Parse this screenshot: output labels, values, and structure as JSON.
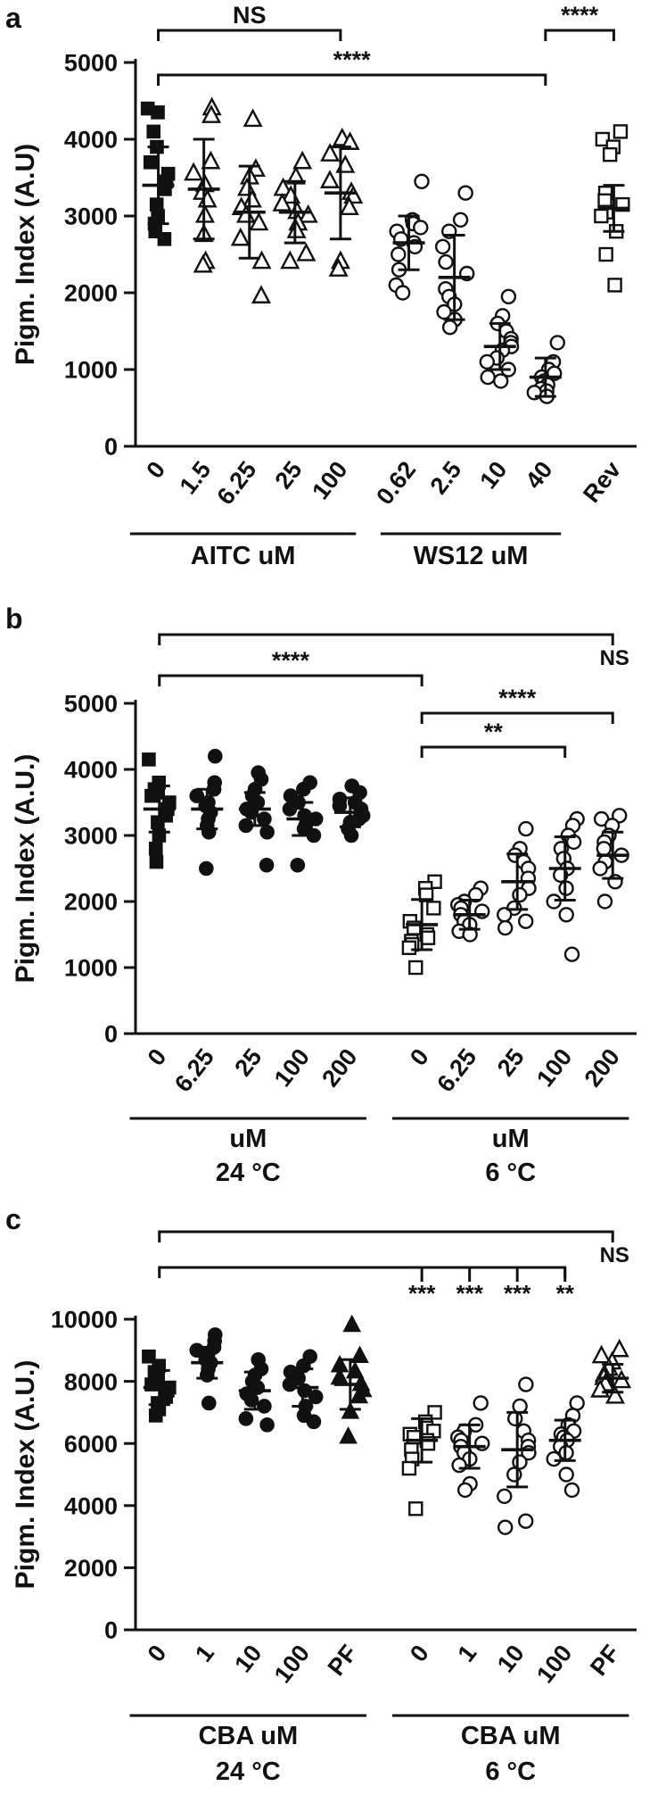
{
  "chart_data": [
    {
      "type": "scatter",
      "panel_label": "a",
      "ylabel": "Pigm. Index (A.U)",
      "ylim": [
        0,
        5000
      ],
      "yticks": [
        0,
        1000,
        2000,
        3000,
        4000,
        5000
      ],
      "groups": [
        {
          "label": "AITC uM",
          "sublabel": "",
          "categories": [
            {
              "tick": "0",
              "marker": "filled-square",
              "mean": 3400,
              "sd": 500,
              "points": [
                4400,
                4350,
                4100,
                3900,
                3700,
                3550,
                3450,
                3350,
                3150,
                3000,
                2900,
                2800,
                2700
              ]
            },
            {
              "tick": "1.5",
              "marker": "open-triangle",
              "mean": 3350,
              "sd": 650,
              "points": [
                4400,
                4300,
                3700,
                3550,
                3400,
                3300,
                3200,
                3000,
                2750,
                2400,
                2350
              ]
            },
            {
              "tick": "6.25",
              "marker": "open-triangle",
              "mean": 3050,
              "sd": 600,
              "points": [
                4250,
                3600,
                3500,
                3350,
                3200,
                3100,
                3000,
                2900,
                2700,
                2400,
                1950
              ]
            },
            {
              "tick": "25",
              "marker": "open-triangle",
              "mean": 3050,
              "sd": 400,
              "points": [
                3700,
                3500,
                3350,
                3250,
                3150,
                3050,
                3000,
                2900,
                2800,
                2500,
                2400
              ]
            },
            {
              "tick": "100",
              "marker": "open-triangle",
              "mean": 3300,
              "sd": 600,
              "points": [
                4000,
                3950,
                3800,
                3650,
                3450,
                3300,
                3250,
                3100,
                2400,
                2300
              ]
            }
          ]
        },
        {
          "label": "WS12 uM",
          "sublabel": "",
          "categories": [
            {
              "tick": "0.62",
              "marker": "open-circle",
              "mean": 2650,
              "sd": 350,
              "points": [
                3450,
                2950,
                2900,
                2850,
                2800,
                2700,
                2650,
                2600,
                2500,
                2300,
                2100,
                2000
              ]
            },
            {
              "tick": "2.5",
              "marker": "open-circle",
              "mean": 2200,
              "sd": 550,
              "points": [
                3300,
                2950,
                2800,
                2600,
                2400,
                2250,
                2050,
                1950,
                1850,
                1750,
                1650,
                1550
              ]
            },
            {
              "tick": "10",
              "marker": "open-circle",
              "mean": 1300,
              "sd": 300,
              "points": [
                1950,
                1700,
                1600,
                1500,
                1400,
                1350,
                1300,
                1250,
                1150,
                1100,
                1000,
                900,
                850
              ]
            },
            {
              "tick": "40",
              "marker": "open-circle",
              "mean": 900,
              "sd": 250,
              "points": [
                1350,
                1100,
                1000,
                950,
                900,
                850,
                800,
                750,
                720,
                700,
                650
              ]
            }
          ]
        },
        {
          "label": "",
          "sublabel": "",
          "categories": [
            {
              "tick": "Rev",
              "marker": "open-square",
              "mean": 3100,
              "sd": 300,
              "points": [
                4100,
                4000,
                3900,
                3800,
                3300,
                3200,
                3150,
                3050,
                3000,
                2800,
                2500,
                2100
              ]
            }
          ]
        }
      ],
      "brackets": [
        {
          "from": 0,
          "to": 4,
          "level": 1,
          "label": "NS",
          "label_pos": "center"
        },
        {
          "from": 0,
          "to": 8,
          "level": 2,
          "label": "****",
          "label_pos": "center"
        },
        {
          "from": 8,
          "to": 9,
          "level": 1,
          "label": "****",
          "label_pos": "center"
        }
      ],
      "col_stars": []
    },
    {
      "type": "scatter",
      "panel_label": "b",
      "ylabel": "Pigm. Index (A.U.)",
      "ylim": [
        0,
        5000
      ],
      "yticks": [
        0,
        1000,
        2000,
        3000,
        4000,
        5000
      ],
      "groups": [
        {
          "label": "uM",
          "sublabel": "24 °C",
          "categories": [
            {
              "tick": "0",
              "marker": "filled-square",
              "mean": 3400,
              "sd": 350,
              "points": [
                4150,
                3800,
                3700,
                3650,
                3600,
                3500,
                3400,
                3300,
                3200,
                3000,
                2800,
                2600
              ]
            },
            {
              "tick": "6.25",
              "marker": "filled-circle",
              "mean": 3400,
              "sd": 300,
              "points": [
                4200,
                3800,
                3700,
                3600,
                3500,
                3450,
                3350,
                3250,
                3150,
                3050,
                2500
              ]
            },
            {
              "tick": "25",
              "marker": "filled-circle",
              "mean": 3400,
              "sd": 250,
              "points": [
                3950,
                3850,
                3700,
                3600,
                3500,
                3400,
                3350,
                3250,
                3150,
                3050,
                2550
              ]
            },
            {
              "tick": "100",
              "marker": "filled-circle",
              "mean": 3250,
              "sd": 250,
              "points": [
                3800,
                3700,
                3600,
                3500,
                3400,
                3300,
                3250,
                3150,
                3100,
                3000,
                2550
              ]
            },
            {
              "tick": "200",
              "marker": "filled-circle",
              "mean": 3350,
              "sd": 220,
              "points": [
                3750,
                3650,
                3550,
                3500,
                3450,
                3400,
                3300,
                3250,
                3200,
                3100,
                3000
              ]
            }
          ]
        },
        {
          "label": "uM",
          "sublabel": "6  °C",
          "categories": [
            {
              "tick": "0",
              "marker": "open-square",
              "mean": 1650,
              "sd": 380,
              "points": [
                2300,
                2200,
                2100,
                1900,
                1700,
                1600,
                1500,
                1450,
                1400,
                1350,
                1300,
                1000
              ]
            },
            {
              "tick": "6.25",
              "marker": "open-circle",
              "mean": 1800,
              "sd": 220,
              "points": [
                2200,
                2100,
                2000,
                1950,
                1900,
                1850,
                1800,
                1700,
                1650,
                1550,
                1500
              ]
            },
            {
              "tick": "25",
              "marker": "open-circle",
              "mean": 2300,
              "sd": 420,
              "points": [
                3100,
                2800,
                2700,
                2600,
                2500,
                2350,
                2200,
                2100,
                1900,
                1800,
                1700,
                1600
              ]
            },
            {
              "tick": "100",
              "marker": "open-circle",
              "mean": 2500,
              "sd": 480,
              "points": [
                3250,
                3150,
                3000,
                2900,
                2800,
                2650,
                2500,
                2400,
                2200,
                2000,
                1800,
                1200
              ]
            },
            {
              "tick": "200",
              "marker": "open-circle",
              "mean": 2700,
              "sd": 350,
              "points": [
                3300,
                3250,
                3150,
                3000,
                2900,
                2800,
                2700,
                2600,
                2500,
                2300,
                2000
              ]
            }
          ]
        }
      ],
      "brackets": [
        {
          "from": 0,
          "to": 9,
          "level": 1,
          "label": "NS",
          "label_pos": "right"
        },
        {
          "from": 0,
          "to": 5,
          "level": 2,
          "label": "****",
          "label_pos": "center"
        },
        {
          "from": 5,
          "to": 9,
          "level": 3,
          "label": "****",
          "label_pos": "center"
        },
        {
          "from": 5,
          "to": 8,
          "level": 4,
          "label": "**",
          "label_pos": "center"
        }
      ],
      "col_stars": []
    },
    {
      "type": "scatter",
      "panel_label": "c",
      "ylabel": "Pigm. Index (A.U.)",
      "ylim": [
        0,
        10000
      ],
      "yticks": [
        0,
        2000,
        4000,
        6000,
        8000,
        10000
      ],
      "groups": [
        {
          "label": "CBA uM",
          "sublabel": "24 °C",
          "categories": [
            {
              "tick": "0",
              "marker": "filled-square",
              "mean": 7800,
              "sd": 550,
              "points": [
                8800,
                8500,
                8300,
                8100,
                7900,
                7800,
                7700,
                7500,
                7300,
                7100,
                6900
              ]
            },
            {
              "tick": "1",
              "marker": "filled-circle",
              "mean": 8600,
              "sd": 500,
              "points": [
                9500,
                9300,
                9100,
                9000,
                8900,
                8700,
                8600,
                8400,
                8200,
                7300
              ]
            },
            {
              "tick": "10",
              "marker": "filled-circle",
              "mean": 7700,
              "sd": 600,
              "points": [
                8700,
                8400,
                8200,
                8000,
                7800,
                7600,
                7400,
                7200,
                6800,
                6600
              ]
            },
            {
              "tick": "100",
              "marker": "filled-circle",
              "mean": 7800,
              "sd": 600,
              "points": [
                8800,
                8500,
                8300,
                8100,
                7900,
                7700,
                7500,
                7200,
                6900,
                6700
              ]
            },
            {
              "tick": "PF",
              "marker": "filled-triangle",
              "mean": 7900,
              "sd": 800,
              "points": [
                9800,
                8800,
                8500,
                8300,
                8100,
                7900,
                7700,
                7500,
                7000,
                6200
              ]
            }
          ]
        },
        {
          "label": "CBA uM",
          "sublabel": "6  °C",
          "categories": [
            {
              "tick": "0",
              "marker": "open-square",
              "mean": 6100,
              "sd": 700,
              "points": [
                7000,
                6700,
                6500,
                6400,
                6300,
                6200,
                6100,
                6000,
                5800,
                5500,
                5200,
                3900
              ]
            },
            {
              "tick": "1",
              "marker": "open-circle",
              "mean": 5900,
              "sd": 700,
              "points": [
                7300,
                6600,
                6400,
                6200,
                6100,
                6000,
                5900,
                5700,
                5500,
                5300,
                4700,
                4500
              ]
            },
            {
              "tick": "10",
              "marker": "open-circle",
              "mean": 5800,
              "sd": 1200,
              "points": [
                7900,
                7200,
                6800,
                6400,
                6100,
                5900,
                5700,
                5400,
                5000,
                4300,
                3500,
                3300
              ]
            },
            {
              "tick": "100",
              "marker": "open-circle",
              "mean": 6100,
              "sd": 650,
              "points": [
                7300,
                6900,
                6600,
                6400,
                6300,
                6200,
                6100,
                5900,
                5700,
                5500,
                5000,
                4500
              ]
            },
            {
              "tick": "PF",
              "marker": "open-triangle",
              "mean": 8100,
              "sd": 450,
              "points": [
                9000,
                8800,
                8600,
                8400,
                8200,
                8100,
                8000,
                7900,
                7700,
                7500
              ]
            }
          ]
        }
      ],
      "brackets": [
        {
          "from": 0,
          "to": 9,
          "level": 1,
          "label": "NS",
          "label_pos": "right"
        },
        {
          "from": 0,
          "to": 8,
          "level": 2,
          "label": "",
          "label_pos": "center",
          "ticks": [
            5,
            6,
            7,
            8
          ]
        }
      ],
      "col_stars": [
        {
          "col": 5,
          "text": "***"
        },
        {
          "col": 6,
          "text": "***"
        },
        {
          "col": 7,
          "text": "***"
        },
        {
          "col": 8,
          "text": "**"
        }
      ]
    }
  ]
}
